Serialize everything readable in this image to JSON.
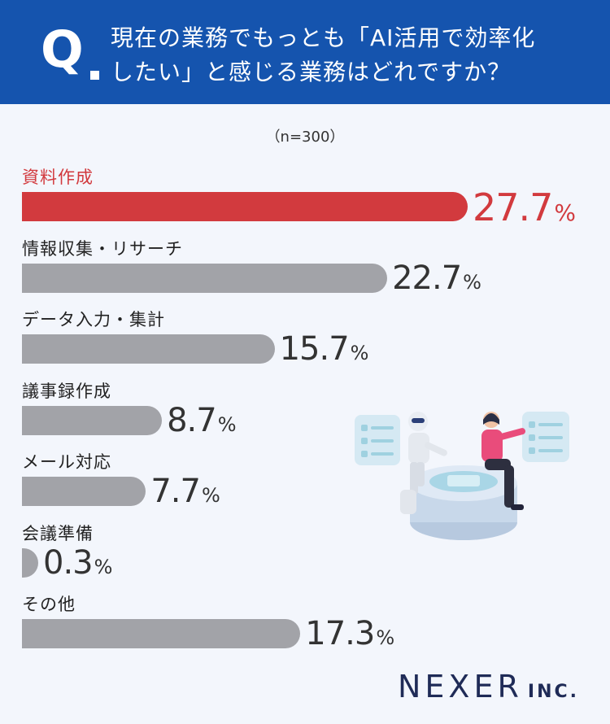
{
  "header": {
    "q_mark": "Q",
    "question_line1": "現在の業務でもっとも「AI活用で効率化",
    "question_line2": "したい」と感じる業務はどれですか？"
  },
  "sample_size": "（n=300）",
  "brand": {
    "name": "NEXER",
    "suffix": "INC."
  },
  "colors": {
    "header": "#1554ae",
    "highlight": "#d23a3e",
    "bar": "#a2a3a8",
    "background": "#f3f6fc"
  },
  "chart_data": {
    "type": "bar",
    "orientation": "horizontal",
    "categories": [
      "資料作成",
      "情報収集・リサーチ",
      "データ入力・集計",
      "議事録作成",
      "メール対応",
      "会議準備",
      "その他"
    ],
    "values": [
      27.7,
      22.7,
      15.7,
      8.7,
      7.7,
      0.3,
      17.3
    ],
    "value_labels": [
      "27.7",
      "22.7",
      "15.7",
      "8.7",
      "7.7",
      "0.3",
      "17.3"
    ],
    "unit": "%",
    "highlight_index": 0
  }
}
